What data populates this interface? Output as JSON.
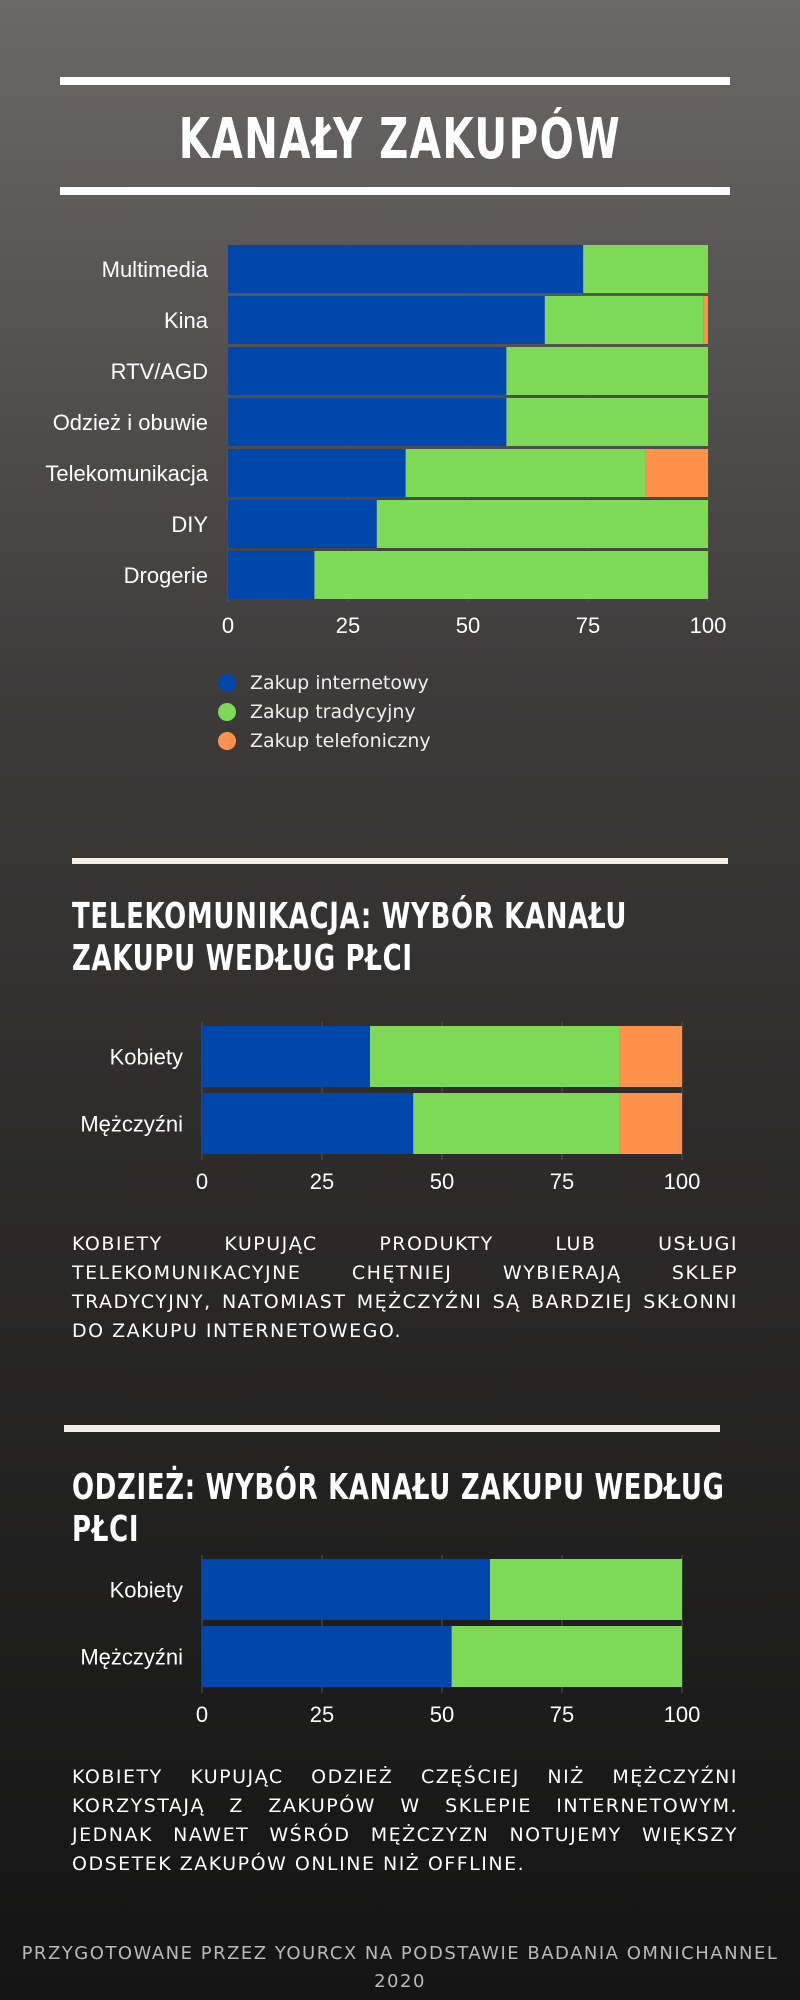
{
  "title": "KANAŁY ZAKUPÓW",
  "colors": {
    "online": "#0047ab",
    "traditional": "#7ed957",
    "phone": "#ff914d"
  },
  "legend": [
    {
      "label": "Zakup internetowy",
      "color": "#0047ab"
    },
    {
      "label": "Zakup tradycyjny",
      "color": "#7ed957"
    },
    {
      "label": "Zakup telefoniczny",
      "color": "#ff914d"
    }
  ],
  "section2": {
    "title": "TELEKOMUNIKACJA: WYBÓR KANAŁU ZAKUPU WEDŁUG PŁCI",
    "text": "KOBIETY KUPUJĄC PRODUKTY LUB USŁUGI TELEKOMUNIKACYJNE CHĘTNIEJ WYBIERAJĄ SKLEP TRADYCYJNY, NATOMIAST MĘŻCZYŹNI SĄ BARDZIEJ SKŁONNI DO ZAKUPU INTERNETOWEGO."
  },
  "section3": {
    "title": "ODZIEŻ: WYBÓR KANAŁU ZAKUPU WEDŁUG PŁCI",
    "text": "KOBIETY KUPUJĄC ODZIEŻ CZĘŚCIEJ NIŻ MĘŻCZYŹNI KORZYSTAJĄ Z ZAKUPÓW W SKLEPIE INTERNETOWYM. JEDNAK NAWET WŚRÓD MĘŻCZYZN NOTUJEMY WIĘKSZY ODSETEK ZAKUPÓW ONLINE NIŻ OFFLINE."
  },
  "footer": "PRZYGOTOWANE PRZEZ YOURCX NA PODSTAWIE BADANIA OMNICHANNEL 2020",
  "chart_data": [
    {
      "type": "bar",
      "orientation": "horizontal",
      "stacked": true,
      "categories": [
        "Multimedia",
        "Kina",
        "RTV/AGD",
        "Odzież i obuwie",
        "Telekomunikacja",
        "DIY",
        "Drogerie"
      ],
      "series": [
        {
          "name": "Zakup internetowy",
          "values": [
            74,
            66,
            58,
            58,
            37,
            31,
            18
          ]
        },
        {
          "name": "Zakup tradycyjny",
          "values": [
            26,
            33,
            42,
            42,
            50,
            69,
            82
          ]
        },
        {
          "name": "Zakup telefoniczny",
          "values": [
            0,
            1,
            0,
            0,
            13,
            0,
            0
          ]
        }
      ],
      "xticks": [
        "0",
        "25",
        "50",
        "75",
        "100"
      ],
      "xlim": [
        0,
        100
      ],
      "legend_position": "bottom"
    },
    {
      "type": "bar",
      "orientation": "horizontal",
      "stacked": true,
      "categories": [
        "Kobiety",
        "Mężczyźni"
      ],
      "series": [
        {
          "name": "Zakup internetowy",
          "values": [
            35,
            44
          ]
        },
        {
          "name": "Zakup tradycyjny",
          "values": [
            52,
            43
          ]
        },
        {
          "name": "Zakup telefoniczny",
          "values": [
            13,
            13
          ]
        }
      ],
      "xticks": [
        "0",
        "25",
        "50",
        "75",
        "100"
      ],
      "xlim": [
        0,
        100
      ]
    },
    {
      "type": "bar",
      "orientation": "horizontal",
      "stacked": true,
      "categories": [
        "Kobiety",
        "Mężczyźni"
      ],
      "series": [
        {
          "name": "Zakup internetowy",
          "values": [
            60,
            52
          ]
        },
        {
          "name": "Zakup tradycyjny",
          "values": [
            40,
            48
          ]
        },
        {
          "name": "Zakup telefoniczny",
          "values": [
            0,
            0
          ]
        }
      ],
      "xticks": [
        "0",
        "25",
        "50",
        "75",
        "100"
      ],
      "xlim": [
        0,
        100
      ]
    }
  ]
}
